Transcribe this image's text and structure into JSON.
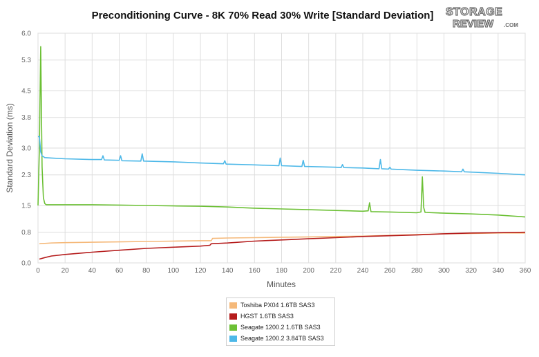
{
  "title": "Preconditioning Curve - 8K 70% Read 30% Write [Standard Deviation]",
  "logo_text": "STORAGE REVIEW.COM",
  "chart_data": {
    "type": "line",
    "title": "Preconditioning Curve - 8K 70% Read 30% Write [Standard Deviation]",
    "xlabel": "Minutes",
    "ylabel": "Standard Deviation (ms)",
    "xlim": [
      0,
      360
    ],
    "ylim": [
      0,
      6.0
    ],
    "xticks": [
      0,
      20,
      40,
      60,
      80,
      100,
      120,
      140,
      160,
      180,
      200,
      220,
      240,
      260,
      280,
      300,
      320,
      340,
      360
    ],
    "yticks": [
      0.0,
      0.8,
      1.5,
      2.3,
      3.0,
      3.8,
      4.5,
      5.3,
      6.0
    ],
    "ytick_labels": [
      "0.0",
      "0.8",
      "1.5",
      "2.3",
      "3.0",
      "3.8",
      "4.5",
      "5.3",
      "6.0"
    ],
    "grid": true,
    "legend_position": "bottom",
    "series": [
      {
        "name": "Toshiba PX04 1.6TB SAS3",
        "color": "#f5b97a",
        "x": [
          1,
          10,
          20,
          40,
          60,
          80,
          100,
          120,
          128,
          129,
          140,
          160,
          180,
          200,
          220,
          240,
          260,
          280,
          300,
          320,
          340,
          360
        ],
        "y": [
          0.5,
          0.52,
          0.53,
          0.54,
          0.55,
          0.56,
          0.57,
          0.58,
          0.58,
          0.64,
          0.65,
          0.66,
          0.67,
          0.68,
          0.69,
          0.7,
          0.72,
          0.74,
          0.76,
          0.77,
          0.78,
          0.78
        ]
      },
      {
        "name": "HGST 1.6TB SAS3",
        "color": "#b51c1c",
        "x": [
          1,
          5,
          10,
          20,
          40,
          60,
          80,
          100,
          120,
          127,
          128,
          140,
          160,
          180,
          200,
          220,
          240,
          260,
          280,
          300,
          320,
          340,
          360
        ],
        "y": [
          0.1,
          0.14,
          0.18,
          0.22,
          0.28,
          0.33,
          0.38,
          0.41,
          0.44,
          0.46,
          0.5,
          0.52,
          0.57,
          0.6,
          0.63,
          0.66,
          0.69,
          0.71,
          0.73,
          0.76,
          0.78,
          0.79,
          0.8
        ]
      },
      {
        "name": "Seagate 1200.2 1.6TB SAS3",
        "color": "#6cc035",
        "x": [
          0,
          1,
          2,
          3,
          4,
          5,
          6,
          10,
          20,
          40,
          60,
          80,
          100,
          120,
          140,
          160,
          180,
          200,
          220,
          240,
          244,
          245,
          246,
          260,
          280,
          283,
          284,
          285,
          286,
          300,
          320,
          340,
          360
        ],
        "y": [
          1.5,
          3.0,
          5.65,
          2.5,
          1.7,
          1.55,
          1.52,
          1.52,
          1.52,
          1.52,
          1.51,
          1.5,
          1.49,
          1.48,
          1.46,
          1.43,
          1.41,
          1.39,
          1.37,
          1.35,
          1.36,
          1.57,
          1.34,
          1.33,
          1.31,
          1.33,
          2.25,
          1.45,
          1.32,
          1.3,
          1.28,
          1.25,
          1.2
        ]
      },
      {
        "name": "Seagate 1200.2 3.84TB SAS3",
        "color": "#4db8e8",
        "x": [
          0,
          1,
          2,
          3,
          5,
          10,
          20,
          40,
          47,
          48,
          49,
          60,
          61,
          62,
          76,
          77,
          78,
          100,
          120,
          137,
          138,
          139,
          160,
          178,
          179,
          180,
          195,
          196,
          197,
          220,
          224,
          225,
          226,
          240,
          252,
          253,
          254,
          259,
          260,
          261,
          280,
          300,
          313,
          314,
          315,
          340,
          360
        ],
        "y": [
          3.3,
          3.3,
          2.9,
          2.8,
          2.75,
          2.74,
          2.72,
          2.7,
          2.7,
          2.8,
          2.69,
          2.68,
          2.8,
          2.67,
          2.66,
          2.85,
          2.66,
          2.64,
          2.61,
          2.59,
          2.67,
          2.58,
          2.56,
          2.54,
          2.74,
          2.54,
          2.52,
          2.68,
          2.52,
          2.5,
          2.49,
          2.57,
          2.49,
          2.48,
          2.46,
          2.7,
          2.46,
          2.45,
          2.5,
          2.45,
          2.42,
          2.4,
          2.38,
          2.45,
          2.38,
          2.34,
          2.3
        ]
      }
    ]
  }
}
